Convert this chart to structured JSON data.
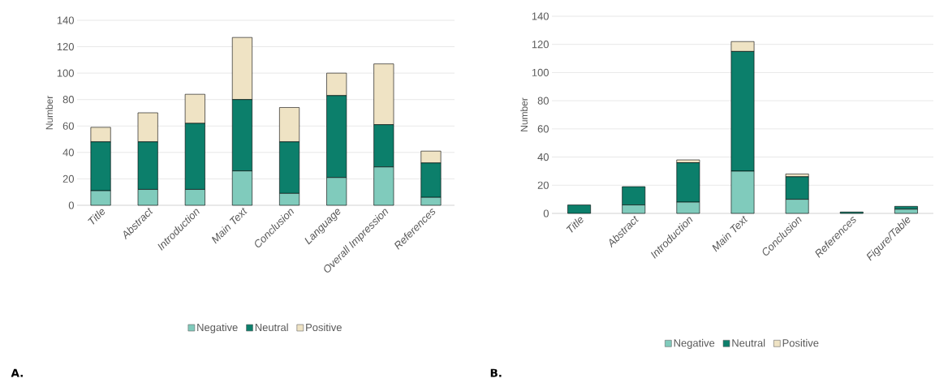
{
  "chart_data": [
    {
      "type": "bar",
      "stacked": true,
      "ylabel": "Number",
      "categories": [
        "Title",
        "Abstract",
        "Introduction",
        "Main Text",
        "Conclusion",
        "Language",
        "Overall Impression",
        "References"
      ],
      "series": [
        {
          "name": "Negative",
          "color": "#80cbbc",
          "values": [
            11,
            12,
            12,
            26,
            9,
            21,
            29,
            6
          ]
        },
        {
          "name": "Neutral",
          "color": "#0c7f6b",
          "values": [
            37,
            36,
            50,
            54,
            39,
            62,
            32,
            26
          ]
        },
        {
          "name": "Positive",
          "color": "#efe3c4",
          "values": [
            11,
            22,
            22,
            47,
            26,
            17,
            46,
            9
          ]
        }
      ],
      "ylim": [
        0,
        140
      ],
      "yticks": [
        0,
        20,
        40,
        60,
        80,
        100,
        120,
        140
      ],
      "grid": "y",
      "legend": "bottom",
      "annotations": [
        "A."
      ]
    },
    {
      "type": "bar",
      "stacked": true,
      "ylabel": "Number",
      "categories": [
        "Title",
        "Abstract",
        "Introduction",
        "Main Text",
        "Conclusion",
        "References",
        "Figure/Table"
      ],
      "series": [
        {
          "name": "Negative",
          "color": "#80cbbc",
          "values": [
            0,
            6,
            8,
            30,
            10,
            0,
            3
          ]
        },
        {
          "name": "Neutral",
          "color": "#0c7f6b",
          "values": [
            6,
            13,
            28,
            85,
            16,
            1,
            2
          ]
        },
        {
          "name": "Positive",
          "color": "#efe3c4",
          "values": [
            0,
            0,
            2,
            7,
            2,
            0,
            0
          ]
        }
      ],
      "ylim": [
        0,
        140
      ],
      "yticks": [
        0,
        20,
        40,
        60,
        80,
        100,
        120,
        140
      ],
      "grid": "y",
      "legend": "bottom",
      "annotations": [
        "B."
      ]
    }
  ]
}
